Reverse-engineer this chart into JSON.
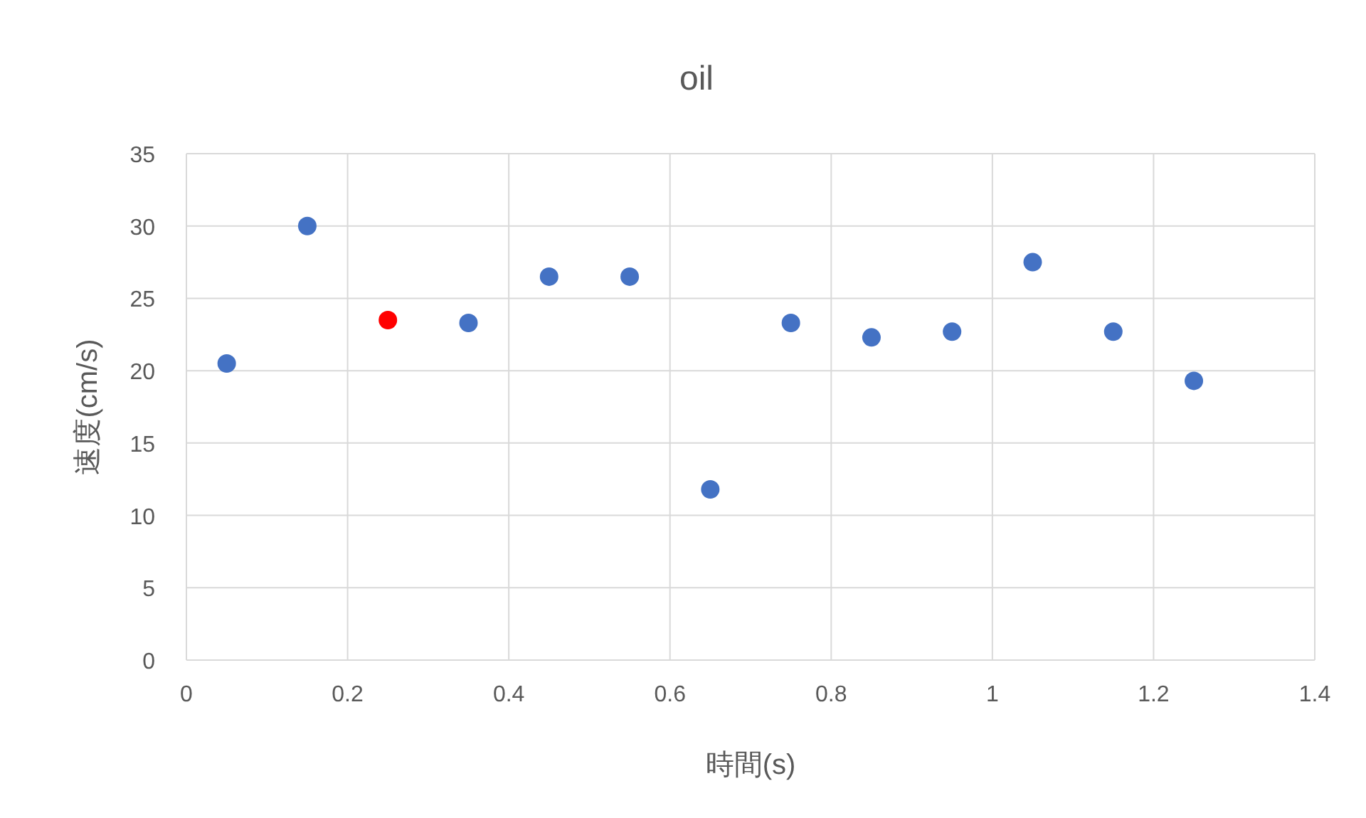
{
  "chart_data": {
    "type": "scatter",
    "title": "oil",
    "xlabel": "時間(s)",
    "ylabel": "速度(cm/s)",
    "x": [
      0.05,
      0.15,
      0.25,
      0.35,
      0.45,
      0.55,
      0.65,
      0.75,
      0.85,
      0.95,
      1.05,
      1.15,
      1.25
    ],
    "series": [
      {
        "colors": [
          "#4472c4",
          "#4472c4",
          "#ff0000",
          "#4472c4",
          "#4472c4",
          "#4472c4",
          "#4472c4",
          "#4472c4",
          "#4472c4",
          "#4472c4",
          "#4472c4",
          "#4472c4",
          "#4472c4"
        ],
        "values": [
          20.5,
          30,
          23.5,
          23.3,
          26.5,
          26.5,
          11.8,
          23.3,
          22.3,
          22.7,
          27.5,
          22.7,
          19.3
        ]
      }
    ],
    "xlim": [
      0,
      1.4
    ],
    "xticks": [
      0,
      0.2,
      0.4,
      0.6,
      0.8,
      1,
      1.2,
      1.4
    ],
    "ylim": [
      0,
      35
    ],
    "yticks": [
      0,
      5,
      10,
      15,
      20,
      25,
      30,
      35
    ],
    "grid": true,
    "marker": "circle"
  }
}
